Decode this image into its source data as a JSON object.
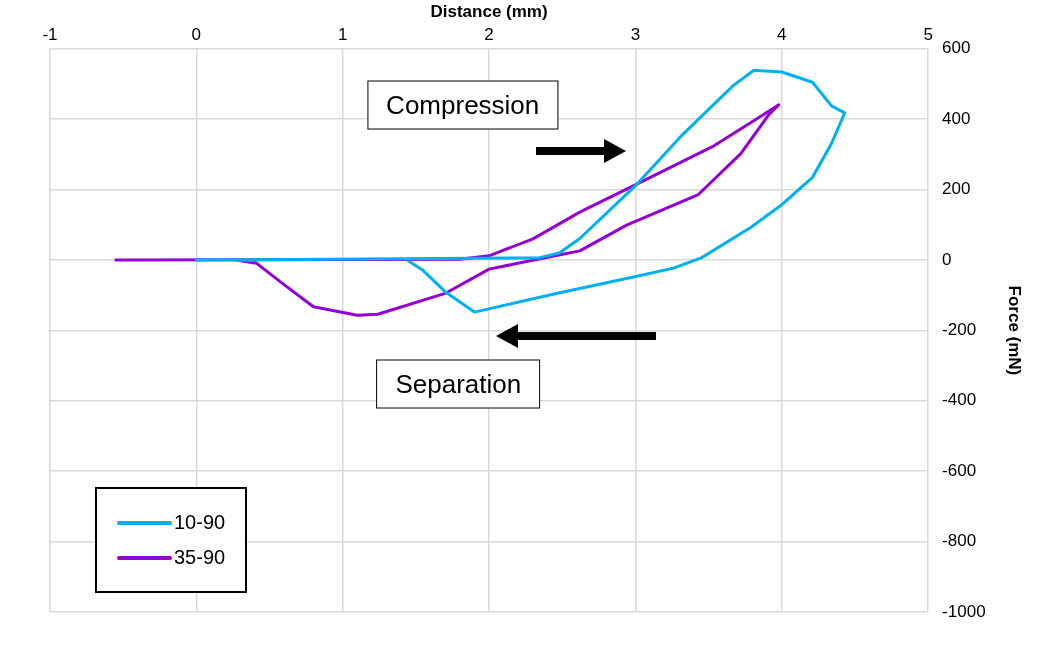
{
  "chart_data": {
    "type": "line",
    "xlabel": "Distance (mm)",
    "ylabel": "Force (mN)",
    "xlim": [
      -1,
      5
    ],
    "xticks": [
      -1,
      0,
      1,
      2,
      3,
      4,
      5
    ],
    "ylim": [
      -1000,
      600
    ],
    "yticks": [
      -1000,
      -800,
      -600,
      -400,
      -200,
      0,
      200,
      400,
      600
    ],
    "grid": true,
    "legend": "bottom left",
    "marker": "none",
    "line_style": "solid",
    "annotations": [
      "Compression",
      "Separation"
    ],
    "series": [
      {
        "name": "10-90",
        "color": "#00b0f0",
        "x": [
          0,
          2.34,
          2.48,
          2.62,
          3.01,
          3.31,
          3.67,
          3.81,
          4.0,
          4.21,
          4.34,
          4.43,
          4.34,
          4.21,
          4.0,
          3.79,
          3.45,
          3.26,
          3.01,
          2.46,
          1.9,
          1.7,
          1.55,
          1.44
        ],
        "values": [
          0,
          6,
          20,
          61,
          215,
          351,
          496,
          539,
          534,
          505,
          438,
          418,
          331,
          235,
          157,
          93,
          6,
          -23,
          -46,
          -95,
          -148,
          -90,
          -30,
          0
        ]
      },
      {
        "name": "35-90",
        "color": "#9400d3",
        "x": [
          -0.55,
          1.8,
          2.0,
          2.3,
          2.62,
          3.03,
          3.54,
          3.98,
          3.91,
          3.72,
          3.43,
          2.94,
          2.62,
          2.34,
          2.0,
          1.7,
          1.24,
          1.1,
          0.8,
          0.59,
          0.41,
          0.27
        ],
        "values": [
          0,
          2,
          12,
          60,
          136,
          220,
          325,
          441,
          412,
          302,
          186,
          99,
          26,
          3,
          -26,
          -95,
          -154,
          -157,
          -133,
          -67,
          -9,
          0
        ]
      }
    ]
  }
}
